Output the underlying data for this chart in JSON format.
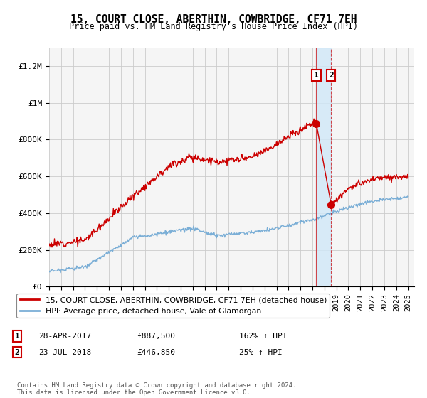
{
  "title": "15, COURT CLOSE, ABERTHIN, COWBRIDGE, CF71 7EH",
  "subtitle": "Price paid vs. HM Land Registry's House Price Index (HPI)",
  "ylabel_ticks": [
    "£0",
    "£200K",
    "£400K",
    "£600K",
    "£800K",
    "£1M",
    "£1.2M"
  ],
  "ytick_values": [
    0,
    200000,
    400000,
    600000,
    800000,
    1000000,
    1200000
  ],
  "ylim": [
    0,
    1300000
  ],
  "xlim_start": 1995.0,
  "xlim_end": 2025.5,
  "transaction1": {
    "date": 2017.32,
    "price": 887500,
    "label": "1"
  },
  "transaction2": {
    "date": 2018.56,
    "price": 446850,
    "label": "2"
  },
  "legend_line1": "15, COURT CLOSE, ABERTHIN, COWBRIDGE, CF71 7EH (detached house)",
  "legend_line2": "HPI: Average price, detached house, Vale of Glamorgan",
  "annotation1_date": "28-APR-2017",
  "annotation1_price": "£887,500",
  "annotation1_hpi": "162% ↑ HPI",
  "annotation2_date": "23-JUL-2018",
  "annotation2_price": "£446,850",
  "annotation2_hpi": "25% ↑ HPI",
  "footer": "Contains HM Land Registry data © Crown copyright and database right 2024.\nThis data is licensed under the Open Government Licence v3.0.",
  "red_color": "#cc0000",
  "blue_color": "#7aaed6",
  "shade_color": "#d0e8f8",
  "background_color": "#f5f5f5",
  "grid_color": "#cccccc"
}
